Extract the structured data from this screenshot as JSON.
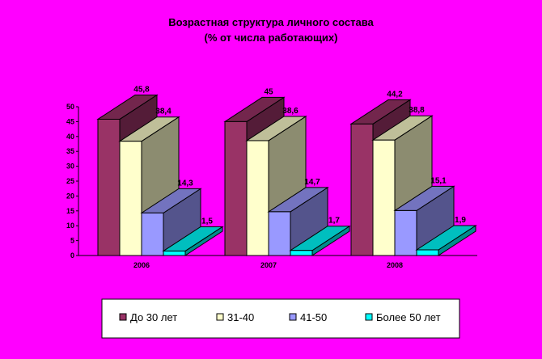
{
  "chart_data": {
    "type": "bar",
    "title": "Возрастная структура личного состава",
    "subtitle": "(% от числа работающих)",
    "categories": [
      "2006",
      "2007",
      "2008"
    ],
    "y_ticks": [
      "0",
      "5",
      "10",
      "15",
      "20",
      "25",
      "30",
      "35",
      "40",
      "45",
      "50"
    ],
    "ylim": [
      0,
      50
    ],
    "grid": false,
    "legend_position": "bottom",
    "series": [
      {
        "name": "До 30 лет",
        "values": [
          45.8,
          45,
          44.2
        ],
        "labels": [
          "45,8",
          "45",
          "44,2"
        ],
        "color": "#993366"
      },
      {
        "name": "31-40",
        "values": [
          38.4,
          38.6,
          38.8
        ],
        "labels": [
          "38,4",
          "38,6",
          "38,8"
        ],
        "color": "#ffffcc"
      },
      {
        "name": "41-50",
        "values": [
          14.3,
          14.7,
          15.1
        ],
        "labels": [
          "14,3",
          "14,7",
          "15,1"
        ],
        "color": "#9999ff"
      },
      {
        "name": "Более 50 лет",
        "values": [
          1.5,
          1.7,
          1.9
        ],
        "labels": [
          "1,5",
          "1,7",
          "1,9"
        ],
        "color": "#00ffff"
      }
    ]
  }
}
